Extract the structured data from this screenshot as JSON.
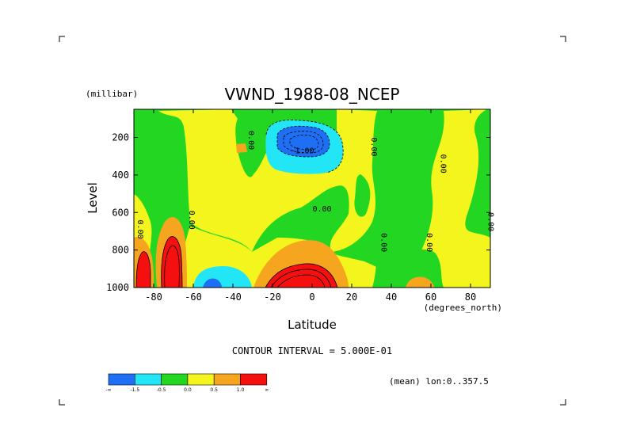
{
  "chart_data": {
    "type": "heatmap",
    "title": "VWND_1988-08_NCEP",
    "xlabel": "Latitude",
    "ylabel": "Level",
    "x_units": "(degrees_north)",
    "y_units": "(millibar)",
    "xlim": [
      -90,
      90
    ],
    "ylim": [
      1000,
      50
    ],
    "y_reversed": true,
    "x_ticks": [
      "-80",
      "-60",
      "-40",
      "-20",
      "0",
      "20",
      "40",
      "60",
      "80"
    ],
    "x_tick_values": [
      -80,
      -60,
      -40,
      -20,
      0,
      20,
      40,
      60,
      80
    ],
    "y_ticks": [
      "200",
      "400",
      "600",
      "800",
      "1000"
    ],
    "y_tick_values": [
      200,
      400,
      600,
      800,
      1000
    ],
    "contour_interval_text": "CONTOUR INTERVAL = 5.000E-01",
    "subset_text": "(mean) lon:0..357.5",
    "contour_labels": [
      {
        "text": "-1.00",
        "x": -5,
        "y": 285
      },
      {
        "text": "0.00",
        "x": 5,
        "y": 595
      },
      {
        "text": "0.00",
        "x": 30,
        "y": 250,
        "rotated": true
      },
      {
        "text": "0.00",
        "x": 65,
        "y": 340,
        "rotated": true
      },
      {
        "text": "0.00",
        "x": 35,
        "y": 760,
        "rotated": true
      },
      {
        "text": "0.00",
        "x": 58,
        "y": 760,
        "rotated": true
      },
      {
        "text": "0.00",
        "x": -62,
        "y": 640,
        "rotated": true
      },
      {
        "text": "0.00",
        "x": -32,
        "y": 215,
        "rotated": true
      },
      {
        "text": "0.00",
        "x": -88,
        "y": 690,
        "rotated": true
      },
      {
        "text": "0.00",
        "x": 89,
        "y": 650,
        "rotated": true
      }
    ],
    "legend": {
      "colors": [
        "#1f6ff5",
        "#22e6f5",
        "#22d622",
        "#f5f51e",
        "#f5a51e",
        "#f50f0f"
      ],
      "labels": [
        "-∞",
        "-1.5",
        "-0.5",
        "0.0",
        "0.5",
        "1.0",
        "∞"
      ]
    },
    "regions": [
      {
        "level": "green",
        "color": "#22d622",
        "lat": [
          -90,
          90
        ],
        "lev": [
          50,
          1000
        ]
      },
      {
        "level": "yellow",
        "color": "#f5f51e",
        "desc": "broad positive band",
        "lat": [
          -80,
          55
        ],
        "lev": [
          80,
          1000
        ]
      },
      {
        "level": "blue-core",
        "color": "#1f6ff5",
        "lat": [
          -20,
          8
        ],
        "lev": [
          160,
          260
        ]
      },
      {
        "level": "cyan",
        "color": "#22e6f5",
        "lat": [
          -25,
          15
        ],
        "lev": [
          120,
          320
        ]
      },
      {
        "level": "red-core",
        "color": "#f50f0f",
        "lat": [
          -22,
          10
        ],
        "lev": [
          880,
          1000
        ]
      },
      {
        "level": "red-core",
        "color": "#f50f0f",
        "lat": [
          -78,
          -70
        ],
        "lev": [
          720,
          1000
        ]
      },
      {
        "level": "red-core",
        "color": "#f50f0f",
        "lat": [
          -90,
          -84
        ],
        "lev": [
          800,
          1000
        ]
      },
      {
        "level": "cyan",
        "color": "#22e6f5",
        "lat": [
          -62,
          -34
        ],
        "lev": [
          900,
          1000
        ]
      },
      {
        "level": "blue-core",
        "color": "#1f6ff5",
        "lat": [
          -57,
          -48
        ],
        "lev": [
          960,
          1000
        ]
      }
    ]
  }
}
